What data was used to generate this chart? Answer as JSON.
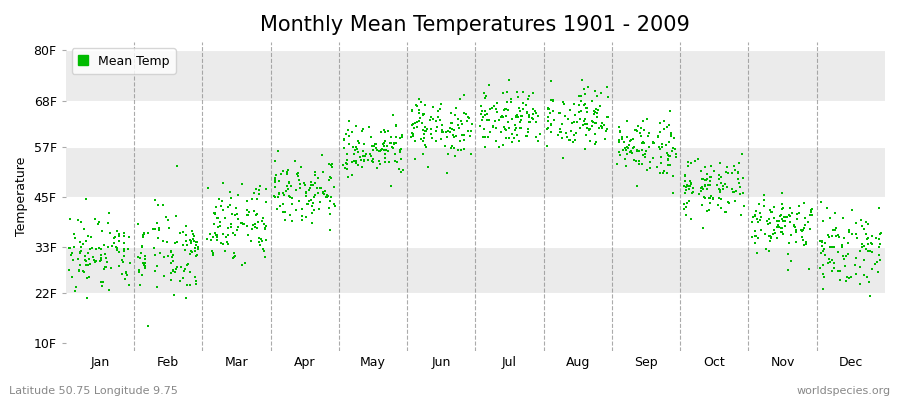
{
  "title": "Monthly Mean Temperatures 1901 - 2009",
  "ylabel": "Temperature",
  "subtitle_left": "Latitude 50.75 Longitude 9.75",
  "subtitle_right": "worldspecies.org",
  "ytick_labels": [
    "10F",
    "22F",
    "33F",
    "45F",
    "57F",
    "68F",
    "80F"
  ],
  "ytick_values": [
    10,
    22,
    33,
    45,
    57,
    68,
    80
  ],
  "ylim": [
    8,
    82
  ],
  "xtick_labels": [
    "Jan",
    "Feb",
    "Mar",
    "Apr",
    "May",
    "Jun",
    "Jul",
    "Aug",
    "Sep",
    "Oct",
    "Nov",
    "Dec"
  ],
  "dot_color": "#00BB00",
  "fig_bg_color": "#FFFFFF",
  "band_colors": [
    "#FFFFFF",
    "#EBEBEB"
  ],
  "dashed_line_color": "#888888",
  "legend_label": "Mean Temp",
  "title_fontsize": 15,
  "label_fontsize": 9,
  "tick_fontsize": 9,
  "years": 109,
  "monthly_means_C": [
    -0.5,
    -0.2,
    3.5,
    8.2,
    13.0,
    16.0,
    17.8,
    17.5,
    13.5,
    8.5,
    3.5,
    0.5
  ],
  "monthly_std_C": [
    3.0,
    3.0,
    2.5,
    2.0,
    2.0,
    2.0,
    2.0,
    2.0,
    2.0,
    2.0,
    2.0,
    2.5
  ],
  "seed": 42,
  "dot_size": 3,
  "xlim": [
    0,
    12
  ],
  "dashed_line_positions": [
    1,
    2,
    3,
    4,
    5,
    6,
    7,
    8,
    9,
    10,
    11
  ]
}
